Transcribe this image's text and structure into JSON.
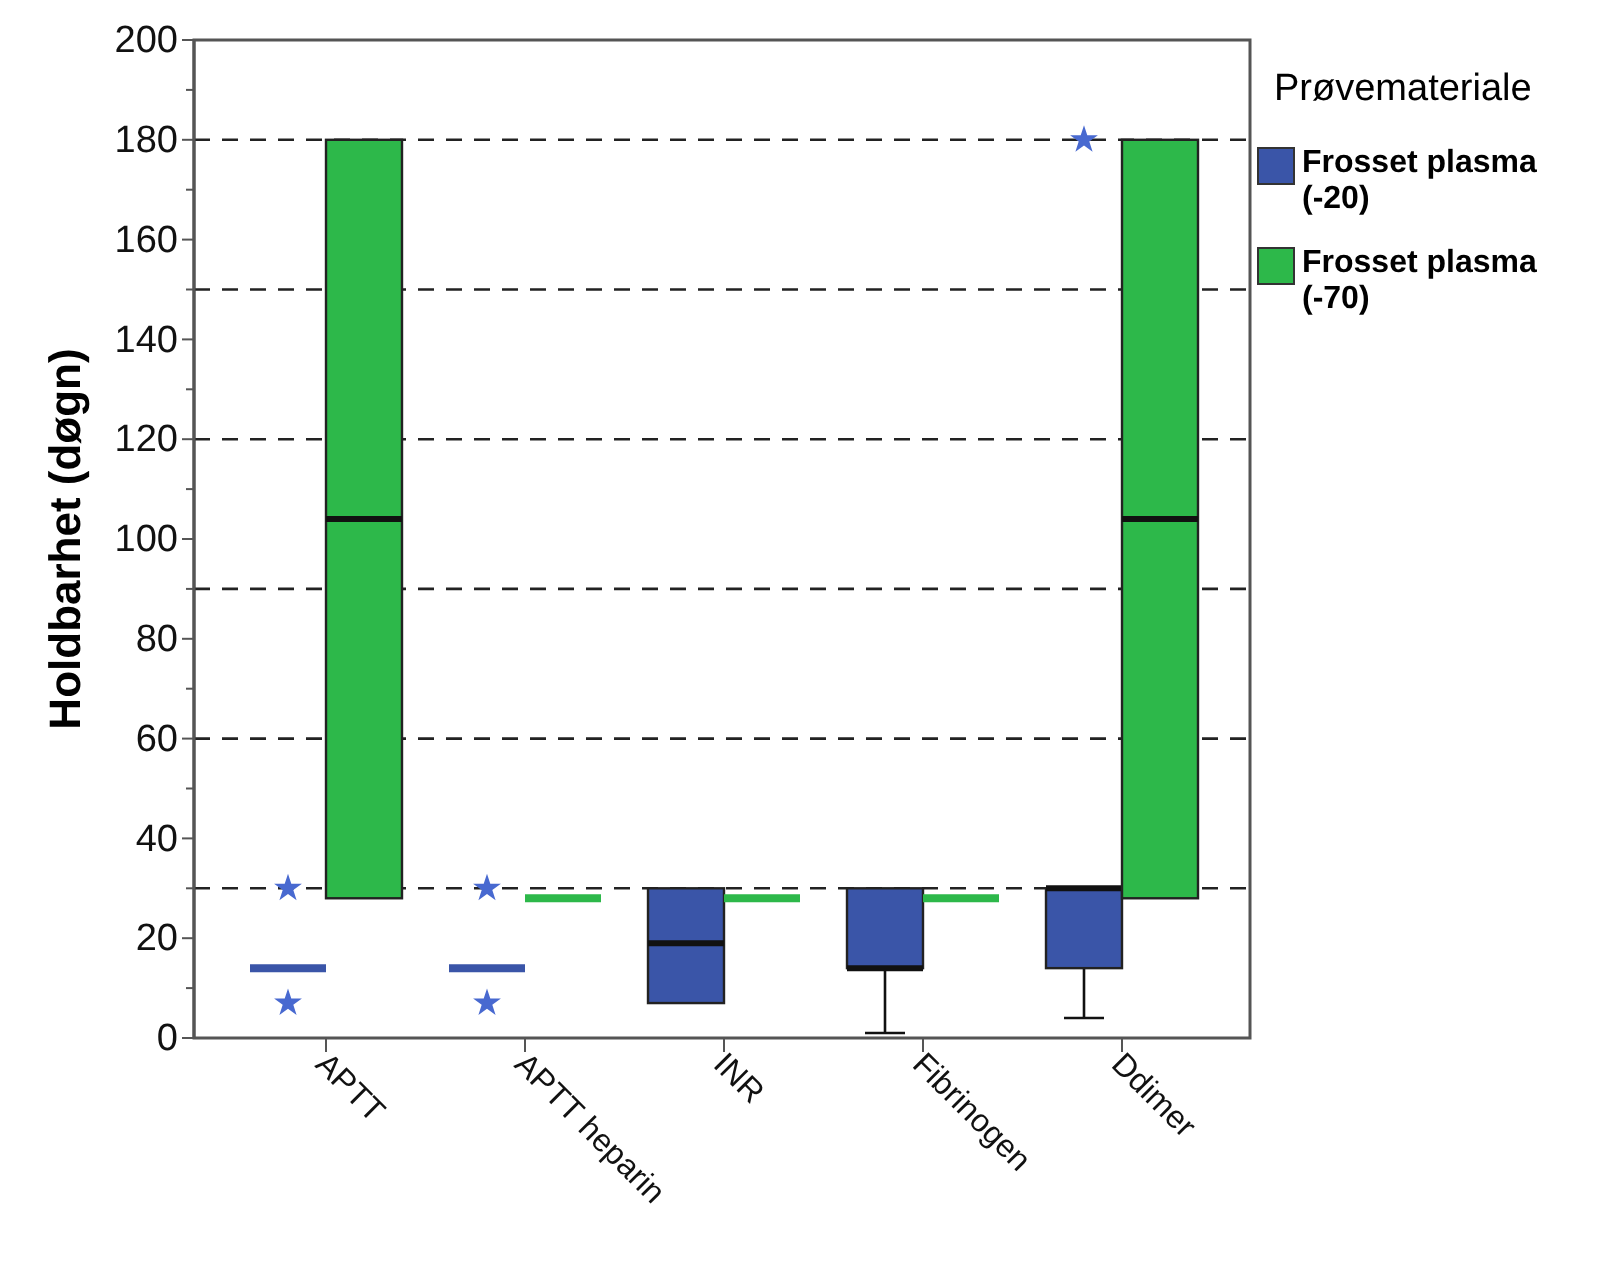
{
  "chart_data": {
    "type": "box",
    "ylabel": "Holdbarhet (døgn)",
    "legend_title": "Prøvemateriale",
    "legend": "right",
    "grid": false,
    "categories": [
      "APTT",
      "APTT heparin",
      "INR",
      "Fibrinogen",
      "Ddimer"
    ],
    "ylim": [
      0,
      200
    ],
    "yticks": [
      0,
      {
        "value": 10,
        "label": null
      },
      20,
      {
        "value": 30,
        "label": null
      },
      40,
      {
        "value": 50,
        "label": null
      },
      60,
      {
        "value": 70,
        "label": null
      },
      80,
      {
        "value": 90,
        "label": null
      },
      100,
      {
        "value": 110,
        "label": null
      },
      120,
      {
        "value": 130,
        "label": null
      },
      140,
      {
        "value": 150,
        "label": null
      },
      160,
      {
        "value": 170,
        "label": null
      },
      180,
      {
        "value": 190,
        "label": null
      },
      200
    ],
    "ref_lines": [
      {
        "axis": "y",
        "value": 30,
        "line_style": "dashed"
      },
      {
        "axis": "y",
        "value": 60,
        "line_style": "dashed"
      },
      {
        "axis": "y",
        "value": 90,
        "line_style": "dashed"
      },
      {
        "axis": "y",
        "value": 120,
        "line_style": "dashed"
      },
      {
        "axis": "y",
        "value": 150,
        "line_style": "dashed"
      },
      {
        "axis": "y",
        "value": 180,
        "line_style": "dashed"
      }
    ],
    "series": [
      {
        "name": "Frosset plasma (-20)",
        "color": "#3a55a8",
        "boxes": [
          {
            "low": 14,
            "q1": 14,
            "median": 14,
            "q3": 14,
            "high": 14,
            "outliers": [
              30,
              7
            ]
          },
          {
            "low": 14,
            "q1": 14,
            "median": 14,
            "q3": 14,
            "high": 14,
            "outliers": [
              30,
              7
            ]
          },
          {
            "low": 7,
            "q1": 7,
            "median": 19,
            "q3": 30,
            "high": 30
          },
          {
            "low": 1,
            "q1": 14,
            "median": 14,
            "q3": 30,
            "high": 30
          },
          {
            "low": 4,
            "q1": 14,
            "median": 30,
            "q3": 30,
            "high": 30,
            "outliers": [
              180
            ]
          }
        ]
      },
      {
        "name": "Frosset plasma (-70)",
        "color": "#2db84a",
        "boxes": [
          {
            "low": 28,
            "q1": 28,
            "median": 104,
            "q3": 180,
            "high": 180
          },
          {
            "low": 28,
            "q1": 28,
            "median": 28,
            "q3": 28,
            "high": 28
          },
          {
            "low": 28,
            "q1": 28,
            "median": 28,
            "q3": 28,
            "high": 28
          },
          {
            "low": 28,
            "q1": 28,
            "median": 28,
            "q3": 28,
            "high": 28
          },
          {
            "low": 28,
            "q1": 28,
            "median": 104,
            "q3": 180,
            "high": 180
          }
        ]
      }
    ]
  }
}
